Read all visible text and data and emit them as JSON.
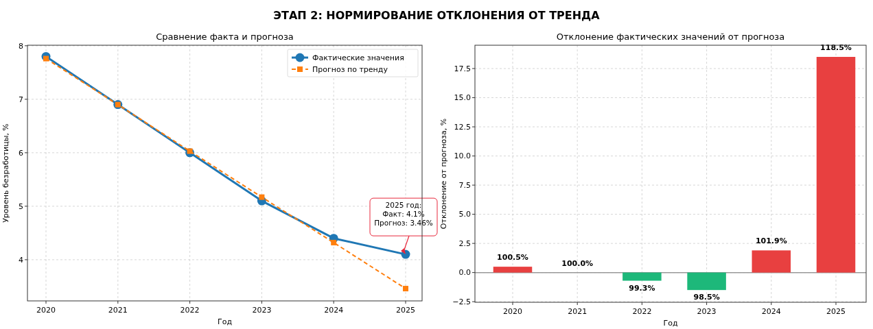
{
  "chart_data": [
    {
      "type": "line",
      "title": "ЭТАП 2: НОРМИРОВАНИЕ ОТКЛОНЕНИЯ ОТ ТРЕНДА",
      "subtitle": "Сравнение факта и прогноза",
      "xlabel": "Год",
      "ylabel": "Уровень безработицы, %",
      "categories": [
        "2020",
        "2021",
        "2022",
        "2023",
        "2024",
        "2025"
      ],
      "series": [
        {
          "name": "Фактические значения",
          "color": "#1f77b4",
          "values": [
            7.8,
            6.9,
            6.0,
            5.1,
            4.4,
            4.1
          ],
          "marker": "circle",
          "line_style": "solid"
        },
        {
          "name": "Прогноз по тренду",
          "color": "#ff7f0e",
          "values": [
            7.76,
            6.9,
            6.03,
            5.17,
            4.32,
            3.46
          ],
          "marker": "square",
          "line_style": "dashed"
        }
      ],
      "ylim": [
        3.23,
        8.01
      ],
      "yticks": [
        4,
        5,
        6,
        7,
        8
      ],
      "grid": true,
      "legend": "top right",
      "annotations": [
        {
          "text": "2025 год:\nФакт: 4.1%\nПрогноз: 3.46%",
          "x": "2025",
          "y": 4.1
        }
      ]
    },
    {
      "type": "bar",
      "subtitle": "Отклонение фактических значений от прогноза",
      "xlabel": "Год",
      "ylabel": "Отклонение от прогноза, %",
      "categories": [
        "2020",
        "2021",
        "2022",
        "2023",
        "2024",
        "2025"
      ],
      "values": [
        0.5,
        0.0,
        -0.7,
        -1.5,
        1.9,
        18.5
      ],
      "colors": [
        "#e84040",
        "#e84040",
        "#1db87a",
        "#1db87a",
        "#e84040",
        "#e84040"
      ],
      "annotations": [
        {
          "text": "100.5%",
          "x": "2020",
          "y": 0.5
        },
        {
          "text": "100.0%",
          "x": "2021",
          "y": 0.0
        },
        {
          "text": "99.3%",
          "x": "2022",
          "y": -0.7
        },
        {
          "text": "98.5%",
          "x": "2023",
          "y": -1.5
        },
        {
          "text": "101.9%",
          "x": "2024",
          "y": 1.9
        },
        {
          "text": "118.5%",
          "x": "2025",
          "y": 18.5
        }
      ],
      "ylim": [
        -2.55,
        19.5
      ],
      "yticks": [
        {
          "value": -2.5,
          "label": "−2.5"
        },
        {
          "value": 0,
          "label": "0.0"
        },
        2.5,
        {
          "value": 5,
          "label": "5.0"
        },
        7.5,
        {
          "value": 10,
          "label": "10.0"
        },
        12.5,
        {
          "value": 15,
          "label": "15.0"
        },
        17.5
      ],
      "grid": true,
      "ref_lines": [
        {
          "axis": "y",
          "value": 0,
          "color": "#999999"
        }
      ]
    }
  ]
}
